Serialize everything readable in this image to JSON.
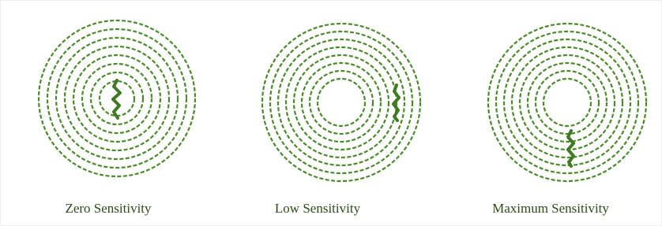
{
  "panels": [
    {
      "label": "Zero Sensitivity"
    },
    {
      "label": "Low Sensitivity"
    },
    {
      "label": "Maximum Sensitivity"
    }
  ]
}
